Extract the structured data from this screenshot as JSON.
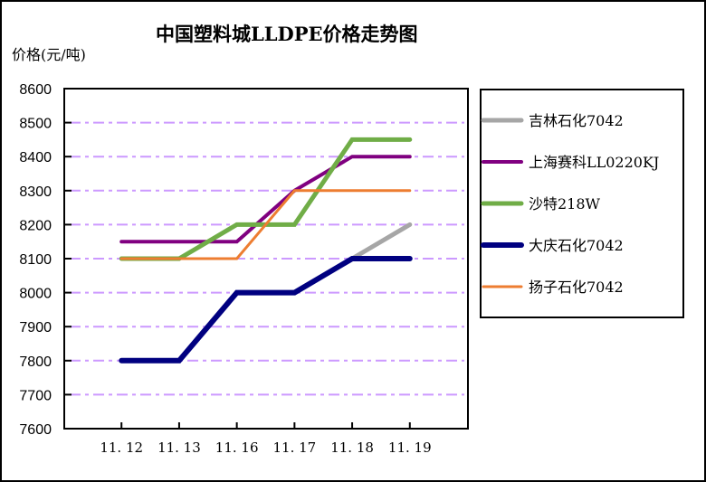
{
  "chart_data": {
    "type": "line",
    "title": "中国塑料城LLDPE价格走势图",
    "ylabel": "价格(元/吨)",
    "xlabel": "",
    "categories": [
      "11.12",
      "11.13",
      "11.16",
      "11.17",
      "11.18",
      "11.19"
    ],
    "ylim": [
      7600,
      8600
    ],
    "yticks": [
      7600,
      7700,
      7800,
      7900,
      8000,
      8100,
      8200,
      8300,
      8400,
      8500,
      8600
    ],
    "grid": true,
    "grid_style": "dash-dot",
    "grid_color": "#CC99FF",
    "legend_position": "right",
    "series": [
      {
        "name": "吉林石化7042",
        "color": "#A6A6A6",
        "width": 5,
        "values": [
          7800,
          7800,
          8000,
          8000,
          8100,
          8200
        ]
      },
      {
        "name": "上海赛科LL0220KJ",
        "color": "#800080",
        "width": 4,
        "values": [
          8150,
          8150,
          8150,
          8300,
          8400,
          8400
        ]
      },
      {
        "name": "沙特218W",
        "color": "#70AD47",
        "width": 5,
        "values": [
          8100,
          8100,
          8200,
          8200,
          8450,
          8450
        ]
      },
      {
        "name": "大庆石化7042",
        "color": "#000080",
        "width": 6,
        "values": [
          7800,
          7800,
          8000,
          8000,
          8100,
          8100
        ]
      },
      {
        "name": "扬子石化7042",
        "color": "#ED7D31",
        "width": 3,
        "values": [
          8100,
          8100,
          8100,
          8300,
          8300,
          8300
        ]
      }
    ]
  },
  "header": {
    "title": "中国塑料城LLDPE价格走势图",
    "y_axis_unit": "价格(元/吨)"
  }
}
